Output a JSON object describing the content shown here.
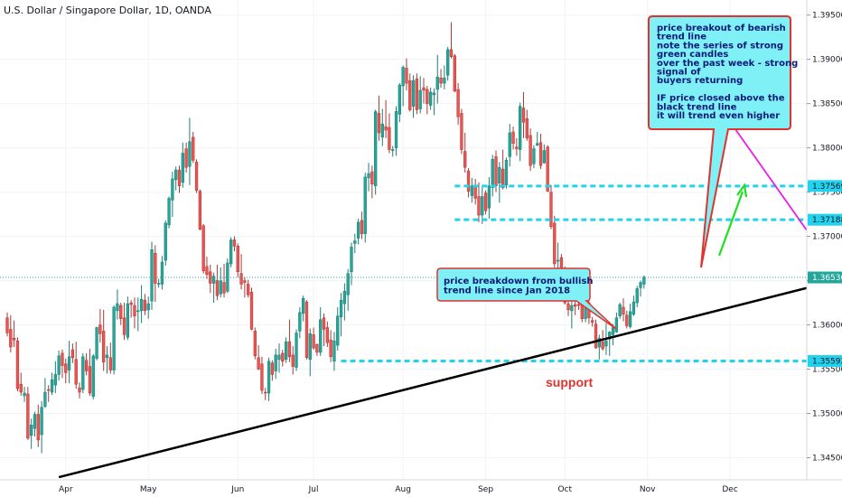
{
  "chart_data": {
    "type": "candlestick",
    "title": "U.S. Dollar / Singapore Dollar, 1D, OANDA",
    "x_ticks": [
      "Apr",
      "May",
      "Jun",
      "Jul",
      "Aug",
      "Sep",
      "Oct",
      "Nov",
      "Dec"
    ],
    "y_ticks": [
      "1.34500",
      "1.35000",
      "1.35500",
      "1.36000",
      "1.36500",
      "1.37000",
      "1.37500",
      "1.38000",
      "1.38500",
      "1.39000",
      "1.39500"
    ],
    "y_range": [
      1.3425,
      1.3967
    ],
    "grid": true,
    "last_price": 1.36536,
    "last_price_label": "1.36536",
    "levels": [
      {
        "value": 1.37569,
        "label": "1.37569",
        "color": "#22d3ee"
      },
      {
        "value": 1.37188,
        "label": "1.37188",
        "color": "#22d3ee"
      },
      {
        "value": 1.35592,
        "label": "1.35592",
        "color": "#22d3ee"
      }
    ],
    "trendlines": [
      {
        "role": "bullish",
        "from": {
          "day": 15,
          "price": 1.3428
        },
        "to": {
          "day": 260,
          "price": 1.3669
        },
        "color": "#000000"
      },
      {
        "role": "bearish",
        "from": {
          "day": 197,
          "price": 1.3901
        },
        "to": {
          "day": 255,
          "price": 1.3582
        },
        "color": "#e81ee8"
      }
    ],
    "annotations": [
      {
        "text_lines": [
          "price breakout of bearish",
          "trend line",
          "note the series of strong",
          "green candles",
          "over the past week - strong",
          "signal of",
          "buyers returning",
          "",
          "IF price closed above the",
          "black trend line",
          "it will trend even higher"
        ]
      },
      {
        "text_lines": [
          "price breakdown from bullish",
          "trend line since Jan 2018"
        ]
      },
      {
        "text": "support"
      }
    ],
    "candles": [
      [
        1.3608,
        1.3614,
        1.3587,
        1.3591
      ],
      [
        1.3595,
        1.3611,
        1.3569,
        1.3575
      ],
      [
        1.3585,
        1.3605,
        1.3575,
        1.3583
      ],
      [
        1.3582,
        1.3586,
        1.3525,
        1.3528
      ],
      [
        1.3533,
        1.3546,
        1.352,
        1.3524
      ],
      [
        1.352,
        1.353,
        1.3513,
        1.3523
      ],
      [
        1.3522,
        1.353,
        1.347,
        1.3472
      ],
      [
        1.3475,
        1.3494,
        1.346,
        1.3487
      ],
      [
        1.3483,
        1.3502,
        1.3474,
        1.3499
      ],
      [
        1.3499,
        1.351,
        1.3462,
        1.347
      ],
      [
        1.3476,
        1.3514,
        1.3455,
        1.3507
      ],
      [
        1.3508,
        1.354,
        1.3506,
        1.3524
      ],
      [
        1.3527,
        1.3532,
        1.3513,
        1.3526
      ],
      [
        1.3524,
        1.3546,
        1.3521,
        1.3538
      ],
      [
        1.3532,
        1.3559,
        1.3523,
        1.3544
      ],
      [
        1.3544,
        1.3571,
        1.3537,
        1.3565
      ],
      [
        1.3568,
        1.3572,
        1.354,
        1.3554
      ],
      [
        1.3556,
        1.3562,
        1.3534,
        1.3546
      ],
      [
        1.3549,
        1.3582,
        1.3534,
        1.3564
      ],
      [
        1.3572,
        1.3579,
        1.3557,
        1.3563
      ],
      [
        1.3561,
        1.3581,
        1.3528,
        1.3533
      ],
      [
        1.3529,
        1.3535,
        1.3517,
        1.3524
      ],
      [
        1.3527,
        1.3568,
        1.3523,
        1.3564
      ],
      [
        1.356,
        1.3568,
        1.3543,
        1.3548
      ],
      [
        1.3553,
        1.3573,
        1.352,
        1.3523
      ],
      [
        1.3519,
        1.3567,
        1.3516,
        1.3565
      ],
      [
        1.3562,
        1.3598,
        1.356,
        1.3597
      ],
      [
        1.36,
        1.3618,
        1.358,
        1.359
      ],
      [
        1.3593,
        1.3617,
        1.3548,
        1.3558
      ],
      [
        1.3563,
        1.3576,
        1.3545,
        1.3566
      ],
      [
        1.3563,
        1.358,
        1.3545,
        1.3549
      ],
      [
        1.3549,
        1.3622,
        1.3544,
        1.362
      ],
      [
        1.3616,
        1.364,
        1.3606,
        1.3624
      ],
      [
        1.3622,
        1.3625,
        1.36,
        1.3607
      ],
      [
        1.3608,
        1.3625,
        1.3583,
        1.3589
      ],
      [
        1.3586,
        1.3632,
        1.3583,
        1.3624
      ],
      [
        1.3625,
        1.3628,
        1.3608,
        1.3623
      ],
      [
        1.3622,
        1.3631,
        1.3596,
        1.361
      ],
      [
        1.3615,
        1.3631,
        1.3593,
        1.3616
      ],
      [
        1.3616,
        1.3645,
        1.3602,
        1.3629
      ],
      [
        1.3628,
        1.3635,
        1.3611,
        1.3616
      ],
      [
        1.3617,
        1.3632,
        1.3607,
        1.3624
      ],
      [
        1.3627,
        1.3694,
        1.3617,
        1.3685
      ],
      [
        1.3681,
        1.369,
        1.3626,
        1.3647
      ],
      [
        1.3646,
        1.3652,
        1.3642,
        1.3647
      ],
      [
        1.3646,
        1.3678,
        1.364,
        1.3671
      ],
      [
        1.3673,
        1.3718,
        1.3667,
        1.3715
      ],
      [
        1.3713,
        1.3745,
        1.3709,
        1.3743
      ],
      [
        1.3741,
        1.3773,
        1.3722,
        1.3765
      ],
      [
        1.3764,
        1.3779,
        1.3752,
        1.3775
      ],
      [
        1.3775,
        1.378,
        1.3749,
        1.3757
      ],
      [
        1.3761,
        1.3806,
        1.3755,
        1.3794
      ],
      [
        1.3799,
        1.3806,
        1.3772,
        1.3778
      ],
      [
        1.3779,
        1.3834,
        1.3758,
        1.3807
      ],
      [
        1.3812,
        1.3818,
        1.3783,
        1.3786
      ],
      [
        1.3784,
        1.3787,
        1.3749,
        1.3752
      ],
      [
        1.3751,
        1.3753,
        1.3707,
        1.3708
      ],
      [
        1.3712,
        1.3714,
        1.3658,
        1.3661
      ],
      [
        1.3666,
        1.3677,
        1.3652,
        1.3657
      ],
      [
        1.366,
        1.3668,
        1.3636,
        1.3647
      ],
      [
        1.3647,
        1.3659,
        1.3625,
        1.3655
      ],
      [
        1.365,
        1.3668,
        1.3628,
        1.3633
      ],
      [
        1.3635,
        1.3665,
        1.3631,
        1.365
      ],
      [
        1.3648,
        1.3669,
        1.3631,
        1.3636
      ],
      [
        1.3638,
        1.3675,
        1.3636,
        1.367
      ],
      [
        1.3669,
        1.3699,
        1.3665,
        1.3696
      ],
      [
        1.3696,
        1.37,
        1.3683,
        1.3689
      ],
      [
        1.3689,
        1.3692,
        1.3654,
        1.366
      ],
      [
        1.3658,
        1.368,
        1.364,
        1.3646
      ],
      [
        1.365,
        1.3654,
        1.3631,
        1.3648
      ],
      [
        1.3646,
        1.3651,
        1.3631,
        1.3634
      ],
      [
        1.3637,
        1.3642,
        1.3594,
        1.3595
      ],
      [
        1.3593,
        1.3597,
        1.3561,
        1.3565
      ],
      [
        1.3563,
        1.3577,
        1.3549,
        1.355
      ],
      [
        1.3556,
        1.3564,
        1.3522,
        1.3526
      ],
      [
        1.3524,
        1.3529,
        1.3515,
        1.3523
      ],
      [
        1.3523,
        1.3563,
        1.3514,
        1.3559
      ],
      [
        1.3557,
        1.356,
        1.3537,
        1.3544
      ],
      [
        1.3548,
        1.3573,
        1.3539,
        1.3566
      ],
      [
        1.3561,
        1.3579,
        1.3546,
        1.3566
      ],
      [
        1.3568,
        1.3572,
        1.3553,
        1.3559
      ],
      [
        1.3561,
        1.3586,
        1.3557,
        1.3581
      ],
      [
        1.3581,
        1.3606,
        1.3558,
        1.3564
      ],
      [
        1.3566,
        1.3576,
        1.3544,
        1.3553
      ],
      [
        1.3552,
        1.3595,
        1.3548,
        1.3591
      ],
      [
        1.3593,
        1.362,
        1.3585,
        1.3614
      ],
      [
        1.3613,
        1.3633,
        1.3604,
        1.363
      ],
      [
        1.3626,
        1.3628,
        1.3561,
        1.3563
      ],
      [
        1.3561,
        1.3596,
        1.3542,
        1.359
      ],
      [
        1.3589,
        1.3597,
        1.3572,
        1.3574
      ],
      [
        1.3578,
        1.3579,
        1.3565,
        1.3569
      ],
      [
        1.3569,
        1.362,
        1.3565,
        1.3606
      ],
      [
        1.3608,
        1.3613,
        1.3576,
        1.3595
      ],
      [
        1.3597,
        1.3604,
        1.3575,
        1.358
      ],
      [
        1.3583,
        1.3594,
        1.3558,
        1.3564
      ],
      [
        1.3559,
        1.3592,
        1.3548,
        1.3582
      ],
      [
        1.3577,
        1.362,
        1.3571,
        1.361
      ],
      [
        1.3609,
        1.3636,
        1.3587,
        1.3628
      ],
      [
        1.3624,
        1.3647,
        1.3605,
        1.3638
      ],
      [
        1.3634,
        1.3663,
        1.3616,
        1.3658
      ],
      [
        1.366,
        1.3693,
        1.3645,
        1.3688
      ],
      [
        1.3692,
        1.3703,
        1.3681,
        1.3695
      ],
      [
        1.3698,
        1.372,
        1.3691,
        1.3716
      ],
      [
        1.3718,
        1.3728,
        1.3697,
        1.3703
      ],
      [
        1.3703,
        1.3772,
        1.3693,
        1.3767
      ],
      [
        1.3766,
        1.3783,
        1.3751,
        1.3771
      ],
      [
        1.3773,
        1.378,
        1.3743,
        1.3759
      ],
      [
        1.3757,
        1.3843,
        1.3747,
        1.3841
      ],
      [
        1.3839,
        1.3859,
        1.3808,
        1.3817
      ],
      [
        1.3812,
        1.3844,
        1.3802,
        1.3827
      ],
      [
        1.3824,
        1.3854,
        1.3811,
        1.382
      ],
      [
        1.3823,
        1.3839,
        1.3794,
        1.3798
      ],
      [
        1.3797,
        1.3802,
        1.379,
        1.3798
      ],
      [
        1.38,
        1.3847,
        1.3791,
        1.3841
      ],
      [
        1.3838,
        1.3873,
        1.3829,
        1.3871
      ],
      [
        1.387,
        1.3893,
        1.3847,
        1.3891
      ],
      [
        1.389,
        1.3901,
        1.3865,
        1.3873
      ],
      [
        1.3876,
        1.3884,
        1.3841,
        1.3843
      ],
      [
        1.3847,
        1.3882,
        1.3834,
        1.3876
      ],
      [
        1.3878,
        1.3884,
        1.3838,
        1.3843
      ],
      [
        1.3844,
        1.3881,
        1.3839,
        1.3865
      ],
      [
        1.3868,
        1.3879,
        1.385,
        1.3865
      ],
      [
        1.3866,
        1.387,
        1.3838,
        1.385
      ],
      [
        1.3848,
        1.3868,
        1.3843,
        1.3863
      ],
      [
        1.386,
        1.3867,
        1.3837,
        1.3862
      ],
      [
        1.3866,
        1.3905,
        1.385,
        1.388
      ],
      [
        1.3879,
        1.3889,
        1.3868,
        1.3873
      ],
      [
        1.3873,
        1.3893,
        1.3866,
        1.3879
      ],
      [
        1.3882,
        1.3914,
        1.3876,
        1.3911
      ],
      [
        1.3911,
        1.3942,
        1.3901,
        1.3903
      ],
      [
        1.3904,
        1.3906,
        1.3863,
        1.3864
      ],
      [
        1.3866,
        1.3873,
        1.3826,
        1.3835
      ],
      [
        1.3839,
        1.3844,
        1.3793,
        1.3798
      ],
      [
        1.3796,
        1.3817,
        1.3772,
        1.3778
      ],
      [
        1.3774,
        1.3777,
        1.3744,
        1.3751
      ],
      [
        1.3746,
        1.3766,
        1.3738,
        1.3757
      ],
      [
        1.3758,
        1.3765,
        1.3736,
        1.3743
      ],
      [
        1.3745,
        1.3761,
        1.3716,
        1.3724
      ],
      [
        1.3724,
        1.3756,
        1.3714,
        1.3745
      ],
      [
        1.3749,
        1.3752,
        1.3725,
        1.3729
      ],
      [
        1.3732,
        1.3767,
        1.372,
        1.3757
      ],
      [
        1.3755,
        1.3792,
        1.3745,
        1.3787
      ],
      [
        1.379,
        1.3797,
        1.375,
        1.3757
      ],
      [
        1.376,
        1.3784,
        1.3738,
        1.3778
      ],
      [
        1.3776,
        1.3798,
        1.3753,
        1.3755
      ],
      [
        1.3758,
        1.3789,
        1.3754,
        1.3786
      ],
      [
        1.379,
        1.3827,
        1.3779,
        1.3817
      ],
      [
        1.3818,
        1.3824,
        1.3798,
        1.3805
      ],
      [
        1.3801,
        1.3811,
        1.3791,
        1.3799
      ],
      [
        1.3798,
        1.3851,
        1.3785,
        1.3847
      ],
      [
        1.3845,
        1.3863,
        1.3811,
        1.3829
      ],
      [
        1.3833,
        1.3843,
        1.3808,
        1.3811
      ],
      [
        1.3814,
        1.3822,
        1.3774,
        1.378
      ],
      [
        1.3782,
        1.3803,
        1.3777,
        1.3799
      ],
      [
        1.3803,
        1.3818,
        1.3802,
        1.3805
      ],
      [
        1.3806,
        1.3816,
        1.3776,
        1.378
      ],
      [
        1.3783,
        1.3804,
        1.3782,
        1.3797
      ],
      [
        1.3801,
        1.3803,
        1.375,
        1.3751
      ],
      [
        1.375,
        1.3758,
        1.3708,
        1.3711
      ],
      [
        1.3715,
        1.3723,
        1.3665,
        1.3669
      ],
      [
        1.3672,
        1.3693,
        1.3654,
        1.3673
      ],
      [
        1.3676,
        1.368,
        1.3655,
        1.3661
      ],
      [
        1.3662,
        1.3666,
        1.3623,
        1.3625
      ],
      [
        1.3624,
        1.3631,
        1.361,
        1.3617
      ],
      [
        1.3616,
        1.3631,
        1.3596,
        1.3622
      ],
      [
        1.3623,
        1.3631,
        1.3611,
        1.3621
      ],
      [
        1.3623,
        1.3632,
        1.3617,
        1.3622
      ],
      [
        1.3626,
        1.3629,
        1.3603,
        1.3607
      ],
      [
        1.3607,
        1.3632,
        1.3603,
        1.3629
      ],
      [
        1.3625,
        1.3629,
        1.3601,
        1.3608
      ],
      [
        1.3605,
        1.3609,
        1.3598,
        1.3603
      ],
      [
        1.3601,
        1.3606,
        1.3573,
        1.3574
      ],
      [
        1.3575,
        1.3589,
        1.3561,
        1.3585
      ],
      [
        1.3581,
        1.3594,
        1.3571,
        1.3573
      ],
      [
        1.3576,
        1.3602,
        1.3566,
        1.3582
      ],
      [
        1.3584,
        1.3593,
        1.3565,
        1.3592
      ],
      [
        1.3589,
        1.3601,
        1.3577,
        1.3597
      ],
      [
        1.3592,
        1.3614,
        1.3591,
        1.3608
      ],
      [
        1.361,
        1.3625,
        1.3607,
        1.3623
      ],
      [
        1.362,
        1.363,
        1.3604,
        1.3612
      ],
      [
        1.3611,
        1.3616,
        1.3596,
        1.3599
      ],
      [
        1.3598,
        1.3624,
        1.3596,
        1.3615
      ],
      [
        1.3612,
        1.3633,
        1.361,
        1.3626
      ],
      [
        1.3625,
        1.3644,
        1.362,
        1.3641
      ],
      [
        1.3642,
        1.365,
        1.3632,
        1.3648
      ],
      [
        1.3646,
        1.3656,
        1.3641,
        1.3654
      ]
    ]
  }
}
